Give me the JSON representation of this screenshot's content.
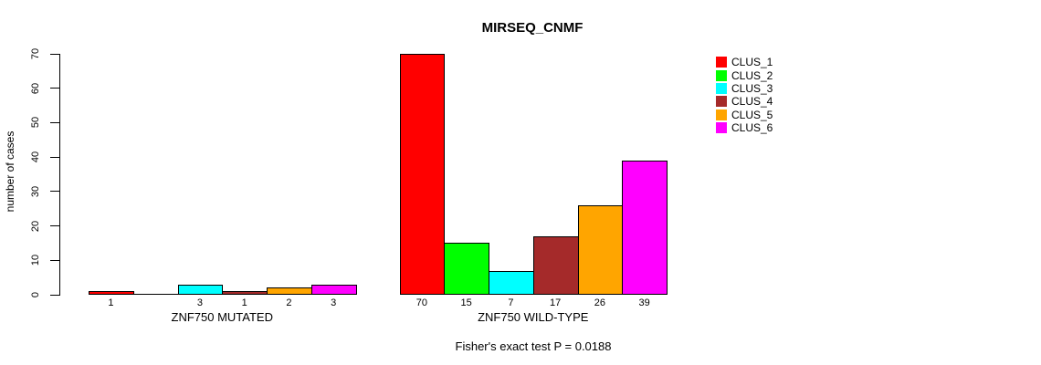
{
  "title": "MIRSEQ_CNMF",
  "footer": "Fisher's exact test P = 0.0188",
  "y_axis": {
    "label": "number of cases",
    "ticks": [
      0,
      10,
      20,
      30,
      40,
      50,
      60,
      70
    ]
  },
  "legend": [
    {
      "label": "CLUS_1",
      "color": "#FF0000"
    },
    {
      "label": "CLUS_2",
      "color": "#00FF00"
    },
    {
      "label": "CLUS_3",
      "color": "#00FFFF"
    },
    {
      "label": "CLUS_4",
      "color": "#A52A2A"
    },
    {
      "label": "CLUS_5",
      "color": "#FFA500"
    },
    {
      "label": "CLUS_6",
      "color": "#FF00FF"
    }
  ],
  "chart_data": {
    "type": "bar",
    "title": "MIRSEQ_CNMF",
    "xlabel": "",
    "ylabel": "number of cases",
    "ylim": [
      0,
      70
    ],
    "grid": false,
    "legend_position": "top-right",
    "annotation": "Fisher's exact test P = 0.0188",
    "categories": [
      "ZNF750 MUTATED",
      "ZNF750 WILD-TYPE"
    ],
    "series": [
      {
        "name": "CLUS_1",
        "color": "#FF0000",
        "values": [
          1,
          70
        ]
      },
      {
        "name": "CLUS_2",
        "color": "#00FF00",
        "values": [
          0,
          15
        ]
      },
      {
        "name": "CLUS_3",
        "color": "#00FFFF",
        "values": [
          3,
          7
        ]
      },
      {
        "name": "CLUS_4",
        "color": "#A52A2A",
        "values": [
          1,
          17
        ]
      },
      {
        "name": "CLUS_5",
        "color": "#FFA500",
        "values": [
          2,
          26
        ]
      },
      {
        "name": "CLUS_6",
        "color": "#FF00FF",
        "values": [
          3,
          39
        ]
      }
    ],
    "bar_value_labels": [
      [
        "1",
        "",
        "3",
        "1",
        "2",
        "3"
      ],
      [
        "70",
        "15",
        "7",
        "17",
        "26",
        "39"
      ]
    ]
  }
}
